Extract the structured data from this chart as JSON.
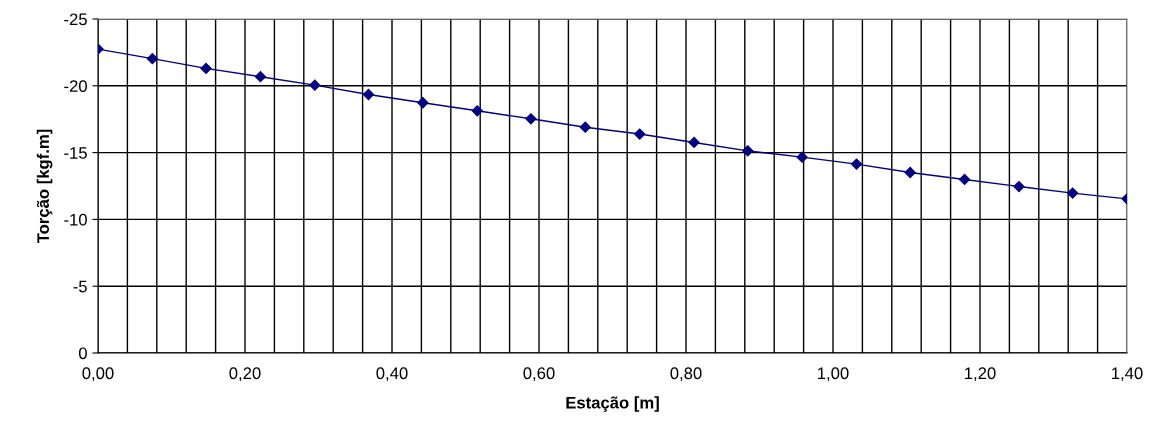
{
  "chart_data": {
    "type": "line",
    "xlabel": "Estação [m]",
    "ylabel": "Torção [kgf.m]",
    "x": [
      0,
      0.074,
      0.147,
      0.221,
      0.295,
      0.368,
      0.442,
      0.516,
      0.589,
      0.663,
      0.737,
      0.811,
      0.884,
      0.958,
      1.032,
      1.105,
      1.179,
      1.253,
      1.326,
      1.4
    ],
    "series": [
      {
        "color": "#000080",
        "values": [
          -22.75,
          -22.03,
          -21.3,
          -20.68,
          -20.05,
          -19.35,
          -18.73,
          -18.13,
          -17.53,
          -16.9,
          -16.39,
          -15.76,
          -15.13,
          -14.66,
          -14.14,
          -13.51,
          -12.99,
          -12.46,
          -11.97,
          -11.54
        ]
      }
    ],
    "xlim": [
      0,
      1.4
    ],
    "xticks": [
      {
        "value": 0,
        "label": "0,00"
      },
      {
        "value": 0.04,
        "label": null
      },
      {
        "value": 0.08,
        "label": null
      },
      {
        "value": 0.12,
        "label": null
      },
      {
        "value": 0.16,
        "label": null
      },
      {
        "value": 0.2,
        "label": "0,20"
      },
      {
        "value": 0.24,
        "label": null
      },
      {
        "value": 0.28,
        "label": null
      },
      {
        "value": 0.32,
        "label": null
      },
      {
        "value": 0.36,
        "label": null
      },
      {
        "value": 0.4,
        "label": "0,40"
      },
      {
        "value": 0.44,
        "label": null
      },
      {
        "value": 0.48,
        "label": null
      },
      {
        "value": 0.52,
        "label": null
      },
      {
        "value": 0.56,
        "label": null
      },
      {
        "value": 0.6,
        "label": "0,60"
      },
      {
        "value": 0.64,
        "label": null
      },
      {
        "value": 0.68,
        "label": null
      },
      {
        "value": 0.72,
        "label": null
      },
      {
        "value": 0.76,
        "label": null
      },
      {
        "value": 0.8,
        "label": "0,80"
      },
      {
        "value": 0.84,
        "label": null
      },
      {
        "value": 0.88,
        "label": null
      },
      {
        "value": 0.92,
        "label": null
      },
      {
        "value": 0.96,
        "label": null
      },
      {
        "value": 1.0,
        "label": "1,00"
      },
      {
        "value": 1.04,
        "label": null
      },
      {
        "value": 1.08,
        "label": null
      },
      {
        "value": 1.12,
        "label": null
      },
      {
        "value": 1.16,
        "label": null
      },
      {
        "value": 1.2,
        "label": "1,20"
      },
      {
        "value": 1.24,
        "label": null
      },
      {
        "value": 1.28,
        "label": null
      },
      {
        "value": 1.32,
        "label": null
      },
      {
        "value": 1.36,
        "label": null
      },
      {
        "value": 1.4,
        "label": "1,40"
      }
    ],
    "ylim": [
      0,
      -25
    ],
    "yticks": [
      0,
      -5,
      -10,
      -15,
      -20,
      -25
    ],
    "grid": true,
    "marker": "diamond",
    "line_style": "solid"
  }
}
